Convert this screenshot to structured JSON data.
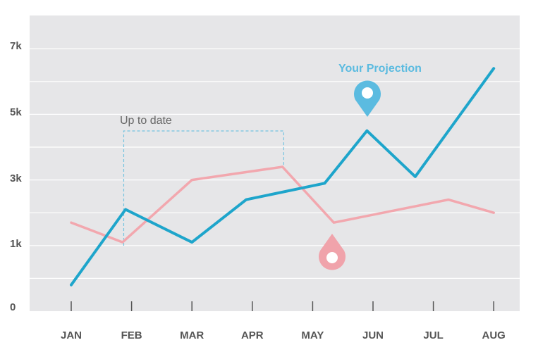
{
  "chart_data": {
    "type": "line",
    "title": "",
    "xlabel": "",
    "ylabel": "",
    "categories": [
      "JAN",
      "FEB",
      "MAR",
      "APR",
      "MAY",
      "JUN",
      "JUL",
      "AUG"
    ],
    "y_ticks": [
      "0",
      "1k",
      "3k",
      "5k",
      "7k"
    ],
    "ylim": [
      0,
      7
    ],
    "grid": true,
    "series": [
      {
        "color": "#1ea5cb",
        "x": [
          0.0,
          0.9,
          2.0,
          2.9,
          4.2,
          4.9,
          5.7,
          7.0
        ],
        "y": [
          0.8,
          3.1,
          2.1,
          3.4,
          3.9,
          5.5,
          4.1,
          7.4
        ]
      },
      {
        "color": "#f2a7ae",
        "x": [
          0.0,
          0.85,
          2.0,
          3.5,
          4.35,
          6.25,
          7.0
        ],
        "y": [
          2.7,
          2.1,
          4.0,
          4.4,
          2.7,
          3.4,
          3.0
        ]
      }
    ],
    "annotations": {
      "up_to_date": "Up to date",
      "your_projection": "Your Projection"
    },
    "colors": {
      "plot_bg": "#e6e6e8",
      "grid": "#ffffff",
      "projection_pin": "#5bbbe0",
      "up_to_date_pin": "#f0a3ab",
      "bracket": "#74c3e0"
    }
  }
}
